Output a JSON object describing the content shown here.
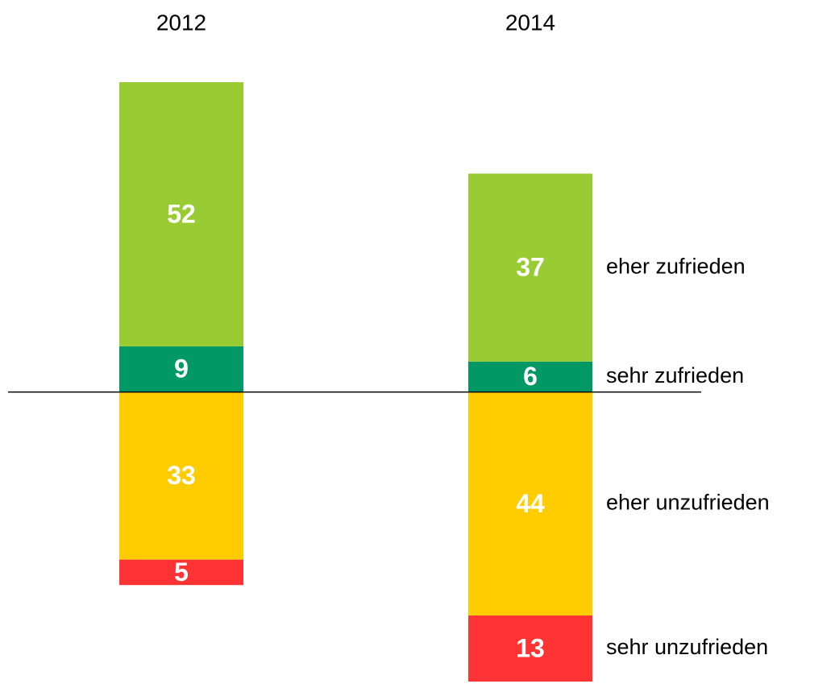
{
  "chart_data": {
    "type": "diverging_stacked_bar",
    "categories": [
      "2012",
      "2014"
    ],
    "series": [
      {
        "name": "sehr zufrieden",
        "color": "#009966",
        "values": [
          9,
          6
        ]
      },
      {
        "name": "eher zufrieden",
        "color": "#99cc33",
        "values": [
          52,
          37
        ]
      },
      {
        "name": "eher unzufrieden",
        "color": "#ffcc00",
        "values": [
          -33,
          -44
        ],
        "value_labels": [
          "33",
          "44"
        ]
      },
      {
        "name": "sehr unzufrieden",
        "color": "#ff3333",
        "values": [
          -5,
          -13
        ],
        "value_labels": [
          "5",
          "13"
        ]
      }
    ],
    "ylim": [
      -57,
      61
    ],
    "legend": "right"
  }
}
